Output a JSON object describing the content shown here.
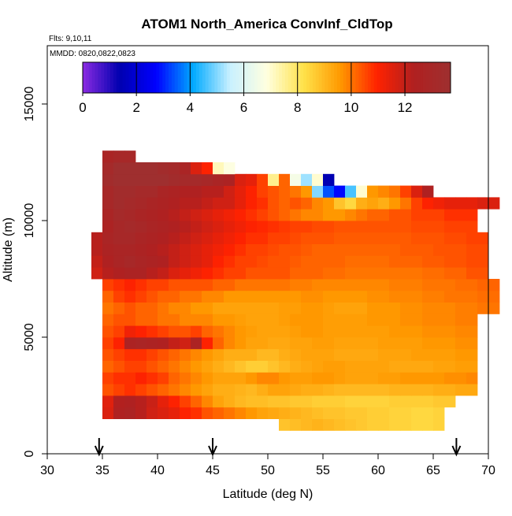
{
  "chart_data": {
    "type": "heatmap",
    "title": "ATOM1 North_America ConvInf_CldTop",
    "subtitle_flights": "Flts: 9,10,11",
    "subtitle_dates": "MMDD: 0820,0822,0823",
    "xlabel": "Latitude (deg N)",
    "ylabel": "Altitude (m)",
    "xlim": [
      30,
      70
    ],
    "ylim": [
      0,
      17500
    ],
    "x_ticks": [
      30,
      35,
      40,
      45,
      50,
      55,
      60,
      65,
      70
    ],
    "y_ticks": [
      0,
      5000,
      10000,
      15000
    ],
    "colorbar": {
      "min": 0,
      "max": 13.7,
      "ticks": [
        0,
        2,
        4,
        6,
        8,
        10,
        12
      ],
      "stops": [
        "#8B2BE2",
        "#0000B0",
        "#0000FF",
        "#00AAFF",
        "#C8F0FF",
        "#FFFFE0",
        "#FFE24A",
        "#FF9900",
        "#FF2200",
        "#B02020",
        "#9E3030"
      ]
    },
    "cell_width_deg": 1,
    "cell_height_m": 500,
    "rows": [
      {
        "alt": 1000,
        "lat_start": 51,
        "values": [
          8.8,
          8.9,
          9.0,
          9.1,
          9.0,
          8.9,
          8.8,
          8.7,
          8.6,
          8.6,
          8.5,
          8.5,
          8.4,
          8.4,
          8.5
        ]
      },
      {
        "alt": 1500,
        "lat_start": 35,
        "values": [
          11.6,
          12.4,
          12.6,
          12.2,
          11.8,
          11.6,
          11.4,
          11.0,
          10.8,
          10.4,
          10.2,
          10.0,
          9.8,
          9.6,
          9.4,
          9.3,
          9.2,
          9.1,
          9.0,
          8.9,
          8.8,
          8.8,
          8.7,
          8.7,
          8.6,
          8.6,
          8.5,
          8.5,
          8.4,
          8.4,
          8.5
        ]
      },
      {
        "alt": 2000,
        "lat_start": 35,
        "values": [
          11.5,
          12.3,
          12.4,
          12.2,
          11.9,
          11.4,
          11.0,
          10.6,
          10.2,
          9.8,
          9.4,
          9.2,
          9.0,
          8.9,
          8.9,
          8.8,
          8.8,
          8.7,
          8.7,
          8.6,
          8.6,
          8.6,
          8.5,
          8.5,
          8.5,
          8.5,
          8.6,
          8.6,
          8.6,
          8.6,
          8.7,
          8.7
        ]
      },
      {
        "alt": 2500,
        "lat_start": 35,
        "values": [
          10.4,
          10.6,
          10.8,
          10.6,
          10.4,
          10.2,
          10.0,
          9.8,
          9.6,
          9.4,
          9.2,
          9.2,
          9.1,
          9.0,
          9.2,
          9.4,
          9.4,
          9.3,
          9.2,
          9.2,
          9.1,
          9.0,
          9.0,
          9.0,
          9.0,
          9.0,
          9.1,
          9.1,
          9.1,
          9.1,
          9.2,
          9.2,
          9.3,
          9.3
        ]
      },
      {
        "alt": 3000,
        "lat_start": 35,
        "values": [
          10.6,
          10.8,
          10.8,
          11.0,
          10.8,
          10.6,
          10.2,
          10.0,
          9.8,
          9.6,
          9.4,
          9.4,
          9.4,
          9.6,
          9.8,
          9.8,
          9.6,
          9.5,
          9.5,
          9.6,
          9.6,
          9.5,
          9.4,
          9.4,
          9.4,
          9.5,
          9.5,
          9.6,
          9.6,
          9.6,
          9.6,
          9.7,
          9.7,
          9.8
        ]
      },
      {
        "alt": 3500,
        "lat_start": 35,
        "values": [
          10.2,
          10.4,
          10.6,
          10.6,
          10.4,
          10.2,
          10.0,
          9.8,
          9.6,
          9.4,
          9.2,
          9.0,
          8.8,
          8.6,
          8.6,
          8.8,
          9.0,
          9.2,
          9.3,
          9.4,
          9.5,
          9.5,
          9.4,
          9.4,
          9.4,
          9.4,
          9.3,
          9.3,
          9.3,
          9.3,
          9.4,
          9.4,
          9.5,
          9.5
        ]
      },
      {
        "alt": 4000,
        "lat_start": 35,
        "values": [
          10.4,
          10.6,
          10.8,
          10.8,
          10.6,
          10.4,
          10.2,
          10.0,
          9.8,
          9.6,
          9.4,
          9.2,
          9.2,
          9.2,
          9.0,
          9.0,
          9.2,
          9.3,
          9.4,
          9.4,
          9.4,
          9.3,
          9.3,
          9.3,
          9.3,
          9.4,
          9.4,
          9.4,
          9.5,
          9.5,
          9.5,
          9.5,
          9.6,
          9.6
        ]
      },
      {
        "alt": 4500,
        "lat_start": 35,
        "values": [
          10.6,
          11.0,
          12.6,
          12.8,
          12.6,
          12.4,
          12.0,
          11.8,
          12.6,
          11.0,
          10.2,
          9.8,
          9.6,
          9.4,
          9.4,
          9.3,
          9.3,
          9.4,
          9.4,
          9.5,
          9.5,
          9.4,
          9.4,
          9.4,
          9.4,
          9.5,
          9.5,
          9.5,
          9.5,
          9.6,
          9.6,
          9.6,
          9.7,
          9.7
        ]
      },
      {
        "alt": 5000,
        "lat_start": 35,
        "values": [
          10.4,
          10.6,
          11.2,
          11.0,
          10.8,
          10.6,
          10.4,
          10.4,
          10.6,
          10.2,
          10.0,
          9.8,
          9.6,
          9.5,
          9.4,
          9.4,
          9.4,
          9.5,
          9.6,
          9.6,
          9.5,
          9.5,
          9.5,
          9.5,
          9.5,
          9.5,
          9.6,
          9.6,
          9.6,
          9.7,
          9.7,
          9.7,
          9.8,
          9.8
        ]
      },
      {
        "alt": 5500,
        "lat_start": 35,
        "values": [
          10.2,
          10.4,
          10.4,
          10.2,
          10.2,
          10.0,
          10.0,
          9.8,
          9.8,
          9.8,
          9.6,
          9.6,
          9.5,
          9.4,
          9.4,
          9.4,
          9.5,
          9.6,
          9.6,
          9.6,
          9.5,
          9.5,
          9.5,
          9.5,
          9.6,
          9.6,
          9.6,
          9.7,
          9.7,
          9.8,
          9.8,
          9.8,
          9.9,
          9.9
        ]
      },
      {
        "alt": 6000,
        "lat_start": 35,
        "values": [
          10.0,
          10.2,
          10.4,
          10.2,
          10.2,
          10.0,
          9.8,
          9.8,
          9.6,
          9.6,
          9.4,
          9.4,
          9.4,
          9.4,
          9.4,
          9.4,
          9.5,
          9.5,
          9.6,
          9.6,
          9.5,
          9.4,
          9.4,
          9.4,
          9.6,
          9.6,
          9.6,
          9.7,
          9.7,
          9.8,
          9.8,
          9.8,
          9.9,
          9.9,
          10.0,
          10.0
        ]
      },
      {
        "alt": 6500,
        "lat_start": 35,
        "values": [
          10.2,
          10.6,
          10.8,
          10.6,
          10.4,
          10.2,
          10.2,
          10.0,
          10.0,
          9.8,
          9.8,
          9.6,
          9.6,
          9.6,
          9.6,
          9.6,
          9.6,
          9.6,
          9.7,
          9.7,
          9.6,
          9.6,
          9.6,
          9.6,
          9.7,
          9.7,
          9.8,
          9.8,
          9.8,
          9.9,
          9.9,
          10.0,
          10.0,
          10.0,
          10.1,
          10.1
        ]
      },
      {
        "alt": 7000,
        "lat_start": 35,
        "values": [
          10.6,
          10.8,
          11.0,
          10.8,
          10.6,
          10.6,
          10.4,
          10.4,
          10.4,
          10.4,
          10.2,
          10.2,
          10.0,
          10.0,
          10.0,
          10.0,
          10.0,
          9.9,
          9.9,
          9.8,
          9.8,
          9.8,
          9.8,
          9.8,
          9.8,
          9.8,
          9.9,
          9.9,
          9.9,
          10.0,
          10.0,
          10.0,
          10.1,
          10.1,
          10.2,
          10.2
        ]
      },
      {
        "alt": 7500,
        "lat_start": 34,
        "values": [
          11.8,
          12.2,
          12.4,
          12.6,
          12.6,
          12.2,
          12.0,
          11.6,
          11.4,
          11.2,
          11.0,
          10.8,
          10.6,
          10.6,
          10.4,
          10.4,
          10.4,
          10.4,
          10.2,
          10.2,
          10.2,
          10.1,
          10.1,
          10.0,
          10.0,
          10.0,
          10.0,
          10.0,
          10.0,
          10.0,
          10.1,
          10.1,
          10.2,
          10.2,
          10.4,
          10.4
        ]
      },
      {
        "alt": 8000,
        "lat_start": 34,
        "values": [
          12.0,
          12.4,
          12.8,
          13.0,
          12.8,
          12.6,
          12.4,
          12.0,
          11.8,
          11.6,
          11.4,
          11.0,
          10.8,
          10.6,
          10.6,
          10.5,
          10.4,
          10.4,
          10.3,
          10.2,
          10.2,
          10.2,
          10.2,
          10.1,
          10.1,
          10.1,
          10.1,
          10.2,
          10.2,
          10.2,
          10.3,
          10.3,
          10.4,
          10.4,
          10.5,
          10.5
        ]
      },
      {
        "alt": 8500,
        "lat_start": 34,
        "values": [
          12.2,
          12.6,
          12.8,
          12.8,
          12.6,
          12.4,
          12.2,
          12.0,
          11.8,
          11.6,
          11.4,
          11.2,
          11.0,
          10.8,
          10.6,
          10.6,
          10.5,
          10.4,
          10.4,
          10.3,
          10.2,
          10.2,
          10.2,
          10.2,
          10.2,
          10.2,
          10.2,
          10.2,
          10.3,
          10.3,
          10.3,
          10.4,
          10.4,
          10.4,
          10.5,
          10.5
        ]
      },
      {
        "alt": 9000,
        "lat_start": 34,
        "values": [
          12.2,
          12.8,
          13.0,
          13.0,
          12.8,
          12.6,
          12.4,
          12.2,
          12.0,
          11.8,
          11.6,
          11.4,
          11.2,
          11.0,
          10.8,
          10.8,
          10.6,
          10.6,
          10.5,
          10.4,
          10.4,
          10.4,
          10.3,
          10.3,
          10.3,
          10.3,
          10.3,
          10.3,
          10.3,
          10.4,
          10.4,
          10.4,
          10.5,
          10.5,
          10.6,
          10.6
        ]
      },
      {
        "alt": 9500,
        "lat_start": 35,
        "values": [
          12.6,
          13.0,
          13.2,
          13.0,
          12.8,
          12.6,
          12.4,
          12.2,
          12.0,
          11.8,
          11.6,
          11.4,
          11.2,
          11.0,
          10.9,
          10.8,
          10.7,
          10.6,
          10.6,
          10.5,
          10.5,
          10.4,
          10.4,
          10.4,
          10.4,
          10.4,
          10.4,
          10.4,
          10.5,
          10.5,
          10.5,
          10.6,
          10.6,
          10.6
        ]
      },
      {
        "alt": 10000,
        "lat_start": 35,
        "values": [
          12.8,
          13.2,
          13.0,
          12.8,
          12.6,
          12.4,
          12.2,
          12.0,
          11.8,
          11.6,
          11.4,
          11.2,
          11.0,
          10.8,
          10.6,
          10.4,
          10.2,
          10.0,
          9.8,
          9.8,
          9.6,
          9.6,
          9.8,
          10.0,
          10.2,
          10.2,
          10.4,
          10.4,
          10.6,
          10.6,
          10.6,
          10.8,
          10.8,
          10.8
        ]
      },
      {
        "alt": 10500,
        "lat_start": 35,
        "values": [
          13.0,
          13.4,
          13.2,
          13.0,
          12.8,
          12.6,
          12.4,
          12.2,
          12.2,
          12.0,
          11.8,
          11.8,
          11.4,
          11.0,
          10.8,
          10.4,
          10.2,
          10.4,
          10.2,
          9.8,
          9.6,
          8.8,
          8.4,
          9.2,
          9.4,
          9.2,
          9.6,
          10.0,
          10.6,
          11.0,
          11.2,
          11.4,
          11.4,
          11.4,
          11.6,
          11.6
        ]
      },
      {
        "alt": 11000,
        "lat_start": 35,
        "values": [
          13.0,
          13.4,
          13.4,
          13.2,
          13.2,
          12.8,
          12.6,
          12.4,
          12.4,
          12.2,
          12.2,
          11.8,
          11.4,
          11.0,
          10.6,
          10.4,
          10.2,
          10.0,
          9.6,
          5.0,
          3.4,
          2.8,
          4.6,
          7.0,
          9.6,
          9.8,
          10.0,
          10.6,
          11.6,
          12.4
        ]
      },
      {
        "alt": 11500,
        "lat_start": 35,
        "values": [
          13.4,
          13.6,
          13.6,
          13.6,
          13.6,
          13.6,
          13.4,
          13.2,
          13.2,
          13.0,
          12.8,
          12.6,
          11.6,
          11.4,
          10.6,
          7.6,
          10.2,
          6.6,
          5.2,
          7.0,
          1.4
        ]
      },
      {
        "alt": 12000,
        "lat_start": 35,
        "values": [
          13.2,
          13.6,
          13.6,
          13.6,
          13.6,
          13.4,
          13.2,
          12.8,
          11.6,
          11.0,
          7.2,
          6.8
        ]
      },
      {
        "alt": 12500,
        "lat_start": 35,
        "values": [
          12.8,
          13.0,
          13.0
        ]
      }
    ],
    "flight_arrows_lat": [
      34.7,
      45,
      67.1
    ]
  }
}
